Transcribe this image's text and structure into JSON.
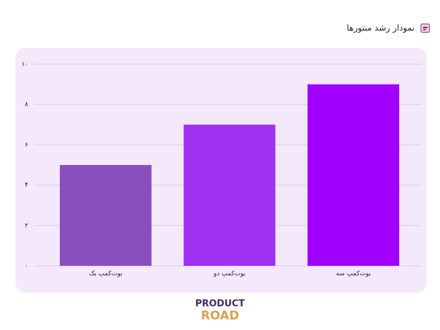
{
  "chart_data": {
    "type": "bar",
    "title": "نمودار رشد منتورها",
    "categories": [
      "بوت‌کمپ یک",
      "بوت‌کمپ دو",
      "بوت‌کمپ سه"
    ],
    "values": [
      5,
      7,
      9
    ],
    "colors": [
      "#8a4fbf",
      "#a030f2",
      "#a100ff"
    ],
    "ylim": [
      0,
      10
    ],
    "yticks": [
      {
        "value": 0,
        "label": "۰"
      },
      {
        "value": 2,
        "label": "۲"
      },
      {
        "value": 4,
        "label": "۴"
      },
      {
        "value": 6,
        "label": "۶"
      },
      {
        "value": 8,
        "label": "۸"
      },
      {
        "value": 10,
        "label": "۱۰"
      }
    ],
    "grid": true
  },
  "logo": {
    "line1": "PRODUCT",
    "line2": "ROAD"
  }
}
